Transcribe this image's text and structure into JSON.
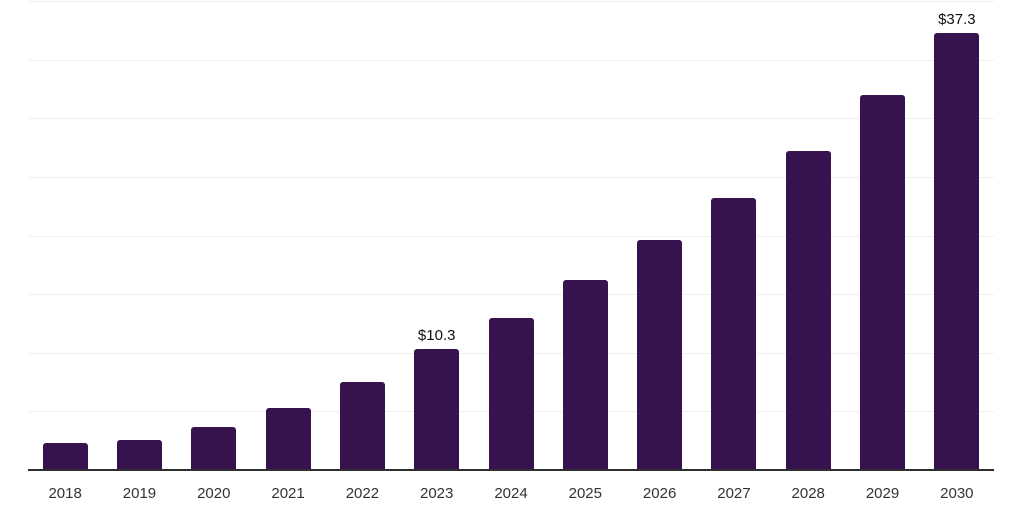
{
  "chart_data": {
    "type": "bar",
    "title": "",
    "xlabel": "",
    "ylabel": "",
    "categories": [
      "2018",
      "2019",
      "2020",
      "2021",
      "2022",
      "2023",
      "2024",
      "2025",
      "2026",
      "2027",
      "2028",
      "2029",
      "2030"
    ],
    "values": [
      2.3,
      2.6,
      3.7,
      5.3,
      7.5,
      10.3,
      13.0,
      16.2,
      19.6,
      23.2,
      27.2,
      32.0,
      37.3
    ],
    "data_labels": [
      {
        "category": "2023",
        "text": "$10.3"
      },
      {
        "category": "2030",
        "text": "$37.3"
      }
    ],
    "ylim": [
      0,
      40
    ],
    "grid": true,
    "grid_step": 5,
    "y_tick_labels_shown": false,
    "legend": "none",
    "colors": {
      "bar": "#36124F",
      "gridline": "#efefef",
      "axis_line": "#2f2f2f",
      "data_label": "#111111",
      "tick_label": "#333333",
      "background": "#ffffff"
    }
  }
}
